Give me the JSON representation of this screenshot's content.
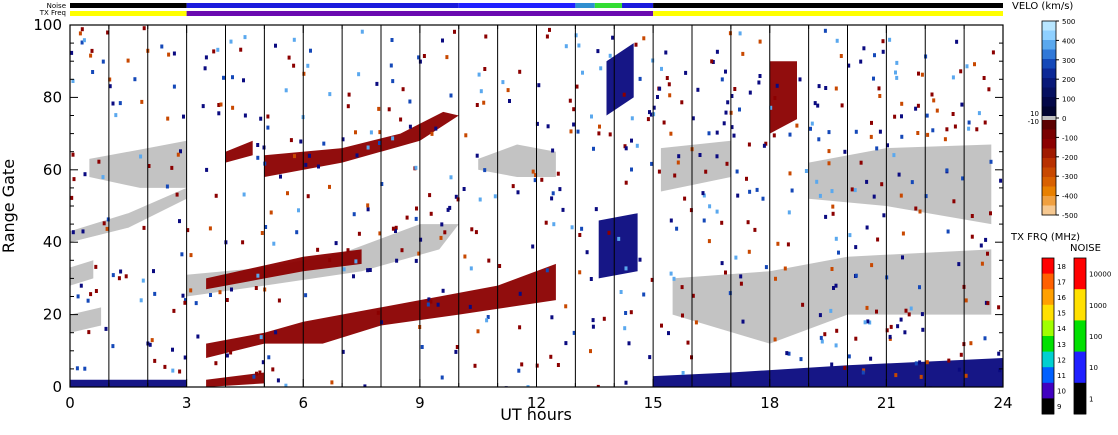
{
  "chart_data": {
    "type": "heatmap",
    "xlabel": "UT hours",
    "ylabel": "Range Gate",
    "xlim": [
      0,
      24
    ],
    "ylim": [
      0,
      100
    ],
    "x_ticks": [
      "0",
      "3",
      "6",
      "9",
      "12",
      "15",
      "18",
      "21",
      "24"
    ],
    "y_ticks": [
      "0",
      "20",
      "40",
      "60",
      "80",
      "100"
    ],
    "scan_marker_hours": [
      1,
      2,
      3,
      4,
      5,
      6,
      7,
      8,
      9,
      10,
      11,
      12,
      13,
      14,
      15,
      16,
      17,
      18,
      19,
      20,
      21,
      22,
      23
    ],
    "top_strips": {
      "noise_label": "Noise",
      "txfreq_label": "TX Freq",
      "noise_segments": [
        {
          "x0": 0,
          "x1": 3,
          "color": "#000000"
        },
        {
          "x0": 3,
          "x1": 10,
          "color": "#1a1adc"
        },
        {
          "x0": 10,
          "x1": 13,
          "color": "#2020ff"
        },
        {
          "x0": 13,
          "x1": 13.5,
          "color": "#2f8fd0"
        },
        {
          "x0": 13.5,
          "x1": 14.2,
          "color": "#33dd33"
        },
        {
          "x0": 14.2,
          "x1": 15,
          "color": "#1a1adc"
        },
        {
          "x0": 15,
          "x1": 24,
          "color": "#000000"
        }
      ],
      "txfreq_segments": [
        {
          "x0": 0,
          "x1": 3,
          "color": "#ffff00"
        },
        {
          "x0": 3,
          "x1": 15,
          "color": "#6a0ab0"
        },
        {
          "x0": 15,
          "x1": 24,
          "color": "#ffff00"
        }
      ]
    },
    "echo_regions": [
      {
        "class": "ground",
        "color": "#c0c0c0",
        "pts": [
          [
            0,
            28
          ],
          [
            0.6,
            30
          ],
          [
            0.6,
            35
          ],
          [
            0,
            33
          ]
        ]
      },
      {
        "class": "ground",
        "color": "#c0c0c0",
        "pts": [
          [
            0,
            43
          ],
          [
            1.5,
            48
          ],
          [
            3,
            55
          ],
          [
            3,
            52
          ],
          [
            1.5,
            44
          ],
          [
            0,
            40
          ]
        ]
      },
      {
        "class": "ground",
        "color": "#c0c0c0",
        "pts": [
          [
            0.5,
            58
          ],
          [
            1.8,
            55
          ],
          [
            3,
            55
          ],
          [
            3,
            68
          ],
          [
            2,
            66
          ],
          [
            0.5,
            63
          ]
        ]
      },
      {
        "class": "ground",
        "color": "#c0c0c0",
        "pts": [
          [
            0,
            15
          ],
          [
            0.8,
            17
          ],
          [
            0.8,
            22
          ],
          [
            0,
            20
          ]
        ]
      },
      {
        "class": "ground",
        "color": "#c0c0c0",
        "pts": [
          [
            3,
            25
          ],
          [
            5,
            28
          ],
          [
            7.5,
            32
          ],
          [
            9.5,
            38
          ],
          [
            10,
            45
          ],
          [
            9,
            45
          ],
          [
            7,
            37
          ],
          [
            5,
            33
          ],
          [
            3,
            31
          ]
        ]
      },
      {
        "class": "ground",
        "color": "#c0c0c0",
        "pts": [
          [
            15.2,
            54
          ],
          [
            17,
            58
          ],
          [
            17,
            68
          ],
          [
            15.2,
            66
          ]
        ]
      },
      {
        "class": "ground",
        "color": "#c0c0c0",
        "pts": [
          [
            19,
            52
          ],
          [
            21,
            50
          ],
          [
            23.7,
            45
          ],
          [
            23.7,
            67
          ],
          [
            21,
            66
          ],
          [
            19,
            62
          ]
        ]
      },
      {
        "class": "ground",
        "color": "#c0c0c0",
        "pts": [
          [
            15.5,
            20
          ],
          [
            18,
            12
          ],
          [
            20,
            20
          ],
          [
            23.7,
            20
          ],
          [
            23.7,
            38
          ],
          [
            20,
            36
          ],
          [
            18,
            32
          ],
          [
            15.5,
            30
          ]
        ]
      },
      {
        "class": "ground",
        "color": "#c0c0c0",
        "pts": [
          [
            10.5,
            60
          ],
          [
            11.5,
            58
          ],
          [
            12.5,
            58
          ],
          [
            12.5,
            65
          ],
          [
            11.5,
            67
          ],
          [
            10.5,
            63
          ]
        ]
      },
      {
        "class": "iono",
        "color": "#8b0000",
        "pts": [
          [
            3.5,
            12
          ],
          [
            5,
            15
          ],
          [
            6,
            18
          ],
          [
            9,
            24
          ],
          [
            11,
            28
          ],
          [
            12.5,
            34
          ],
          [
            12.5,
            24
          ],
          [
            10,
            20
          ],
          [
            8,
            17
          ],
          [
            6.5,
            12
          ],
          [
            5,
            12
          ],
          [
            3.5,
            8
          ]
        ]
      },
      {
        "class": "iono",
        "color": "#8b0000",
        "pts": [
          [
            5,
            58
          ],
          [
            7,
            62
          ],
          [
            9,
            68
          ],
          [
            10,
            75
          ],
          [
            9.6,
            76
          ],
          [
            8.5,
            70
          ],
          [
            7,
            66
          ],
          [
            5,
            64
          ]
        ]
      },
      {
        "class": "iono",
        "color": "#8b0000",
        "pts": [
          [
            3.5,
            30
          ],
          [
            6,
            36
          ],
          [
            7.5,
            38
          ],
          [
            7.5,
            34
          ],
          [
            6,
            32
          ],
          [
            3.5,
            27
          ]
        ]
      },
      {
        "class": "iono",
        "color": "#8b0000",
        "pts": [
          [
            3.5,
            2
          ],
          [
            5,
            4
          ],
          [
            5,
            1
          ],
          [
            3.5,
            0
          ]
        ]
      },
      {
        "class": "iono",
        "color": "#8b0000",
        "pts": [
          [
            4,
            65
          ],
          [
            4.7,
            68
          ],
          [
            4.7,
            64
          ],
          [
            4,
            62
          ]
        ]
      },
      {
        "class": "iono",
        "color": "#8b0000",
        "pts": [
          [
            18,
            70
          ],
          [
            18.7,
            74
          ],
          [
            18.7,
            90
          ],
          [
            18,
            90
          ]
        ]
      },
      {
        "class": "neg-velo",
        "color": "#0a0a80",
        "pts": [
          [
            15,
            0
          ],
          [
            24,
            0
          ],
          [
            24,
            8
          ],
          [
            20,
            6
          ],
          [
            17,
            4
          ],
          [
            15,
            3
          ]
        ]
      },
      {
        "class": "neg-velo",
        "color": "#0a0a80",
        "pts": [
          [
            0,
            0
          ],
          [
            3,
            0
          ],
          [
            3,
            2
          ],
          [
            0,
            2
          ]
        ]
      },
      {
        "class": "neg-velo",
        "color": "#0a0a80",
        "pts": [
          [
            13.6,
            30
          ],
          [
            14.6,
            32
          ],
          [
            14.6,
            48
          ],
          [
            13.6,
            46
          ]
        ]
      },
      {
        "class": "neg-velo",
        "color": "#0a0a80",
        "pts": [
          [
            13.8,
            75
          ],
          [
            14.5,
            80
          ],
          [
            14.5,
            95
          ],
          [
            13.8,
            90
          ]
        ]
      }
    ],
    "velo_colorbar": {
      "title": "VELO (km/s)",
      "ticks": [
        "500",
        "400",
        "300",
        "200",
        "100",
        "0",
        "-100",
        "-200",
        "-300",
        "-400",
        "-500"
      ],
      "pos_colors": [
        "#b8e6ff",
        "#8fd0ff",
        "#5aa8ee",
        "#3078d8",
        "#1448b8",
        "#0c2896",
        "#081878",
        "#061060",
        "#040848",
        "#020430"
      ],
      "neg_colors": [
        "#5c0000",
        "#7a0000",
        "#8b0000",
        "#a01a00",
        "#b83000",
        "#c84800",
        "#d86000",
        "#e88000",
        "#f0a040",
        "#f6c890"
      ],
      "ground_labels": [
        "10",
        "-10"
      ]
    },
    "txfreq_colorbar": {
      "title": "TX FRQ (MHz)",
      "ticks": [
        "18",
        "17",
        "16",
        "15",
        "14",
        "13",
        "12",
        "11",
        "10",
        "9"
      ],
      "colors": [
        "#ff0000",
        "#ff6000",
        "#ffa000",
        "#ffe000",
        "#a0ff00",
        "#00e000",
        "#00d0d0",
        "#0060ff",
        "#4000c0",
        "#000000"
      ]
    },
    "noise_colorbar": {
      "title": "NOISE",
      "ticks": [
        "10000",
        "1000",
        "100",
        "10",
        "1"
      ],
      "colors": [
        "#ff0000",
        "#ffe000",
        "#00e000",
        "#2020ff",
        "#000000"
      ]
    }
  }
}
